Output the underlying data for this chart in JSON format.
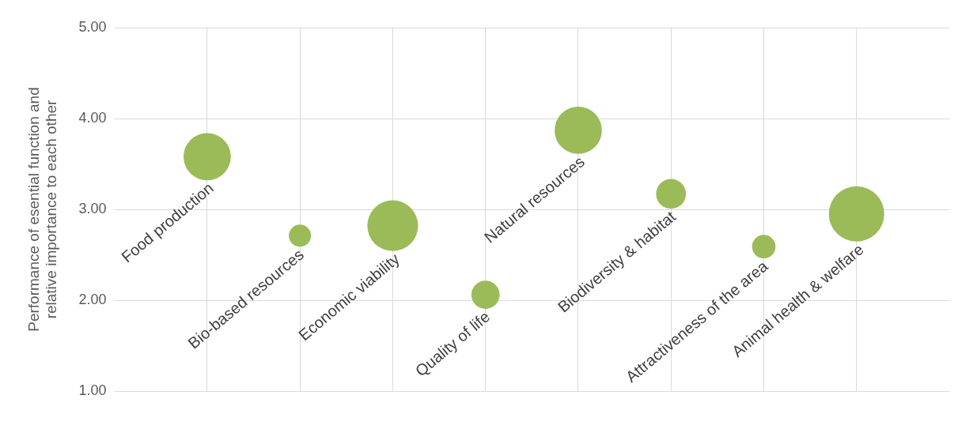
{
  "chart_data": {
    "type": "bubble",
    "ylabel": "Performance of esential function and relative importance to each other",
    "categories": [
      "Food production",
      "Bio-based resources",
      "Economic viability",
      "Quality of life",
      "Natural resources",
      "Biodiversity & habitat",
      "Attractiveness of the area",
      "Animal health & welfare"
    ],
    "values": [
      3.58,
      2.71,
      2.82,
      2.06,
      3.87,
      3.17,
      2.59,
      2.95
    ],
    "sizes": [
      0.73,
      0.16,
      0.84,
      0.26,
      0.73,
      0.29,
      0.18,
      1
    ],
    "color": "#9bbb59",
    "ylim": [
      1,
      5
    ],
    "yticks": [
      {
        "value": 1,
        "label": "1.00"
      },
      {
        "value": 2,
        "label": "2.00"
      },
      {
        "value": 3,
        "label": "3.00"
      },
      {
        "value": 4,
        "label": "4.00"
      },
      {
        "value": 5,
        "label": "5.00"
      }
    ],
    "grid": true,
    "tick_labels": "y"
  }
}
